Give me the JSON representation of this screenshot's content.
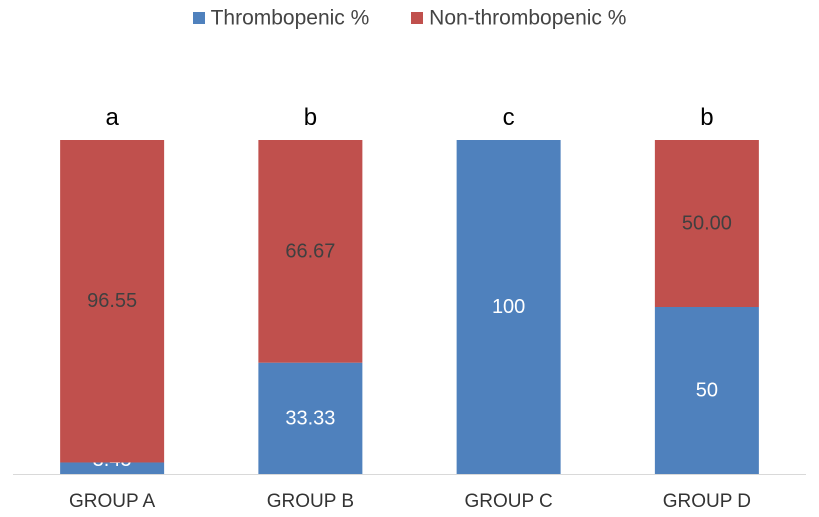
{
  "chart_data": {
    "type": "bar",
    "stacked": true,
    "categories": [
      "GROUP A",
      "GROUP B",
      "GROUP C",
      "GROUP D"
    ],
    "series": [
      {
        "name": "Thrombopenic %",
        "color": "#4f81bd",
        "values": [
          3.45,
          33.33,
          100,
          50
        ],
        "labels": [
          "3.45",
          "33.33",
          "100",
          "50"
        ]
      },
      {
        "name": "Non-thrombopenic %",
        "color": "#c0504d",
        "values": [
          96.55,
          66.67,
          0,
          50
        ],
        "labels": [
          "96.55",
          "66.67",
          "",
          "50.00"
        ]
      }
    ],
    "significance_letters": [
      "a",
      "b",
      "c",
      "b"
    ],
    "ylim": [
      0,
      100
    ],
    "legend_position": "top",
    "grid": false
  }
}
